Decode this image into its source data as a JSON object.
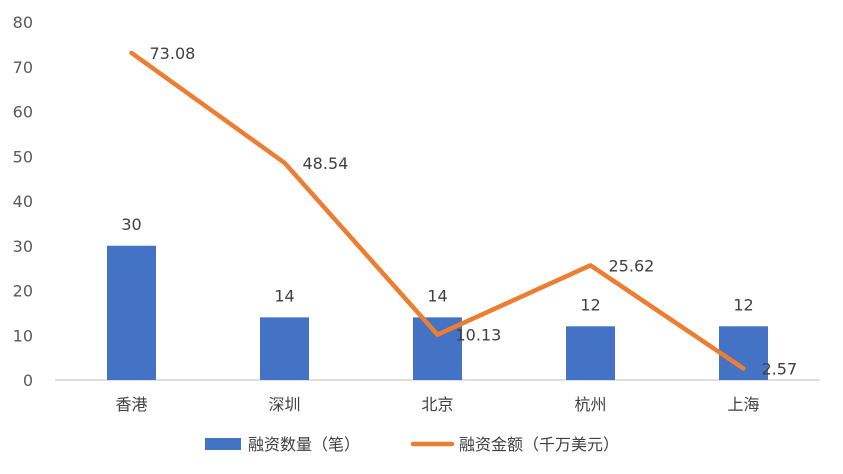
{
  "chart_data": {
    "type": "bar",
    "categories": [
      "香港",
      "深圳",
      "北京",
      "杭州",
      "上海"
    ],
    "series": [
      {
        "name": "融资数量（笔）",
        "type": "bar",
        "color": "#4472C4",
        "values": [
          30,
          14,
          14,
          12,
          12
        ],
        "labels": [
          "30",
          "14",
          "14",
          "12",
          "12"
        ]
      },
      {
        "name": "融资金额（千万美元）",
        "type": "line",
        "color": "#ED7D31",
        "values": [
          73.08,
          48.54,
          10.13,
          25.62,
          2.57
        ],
        "labels": [
          "73.08",
          "48.54",
          "10.13",
          "25.62",
          "2.57"
        ]
      }
    ],
    "ylim": [
      0,
      80
    ],
    "yticks": [
      "0",
      "10",
      "20",
      "30",
      "40",
      "50",
      "60",
      "70",
      "80"
    ],
    "grid": false,
    "legend": "bottom"
  }
}
